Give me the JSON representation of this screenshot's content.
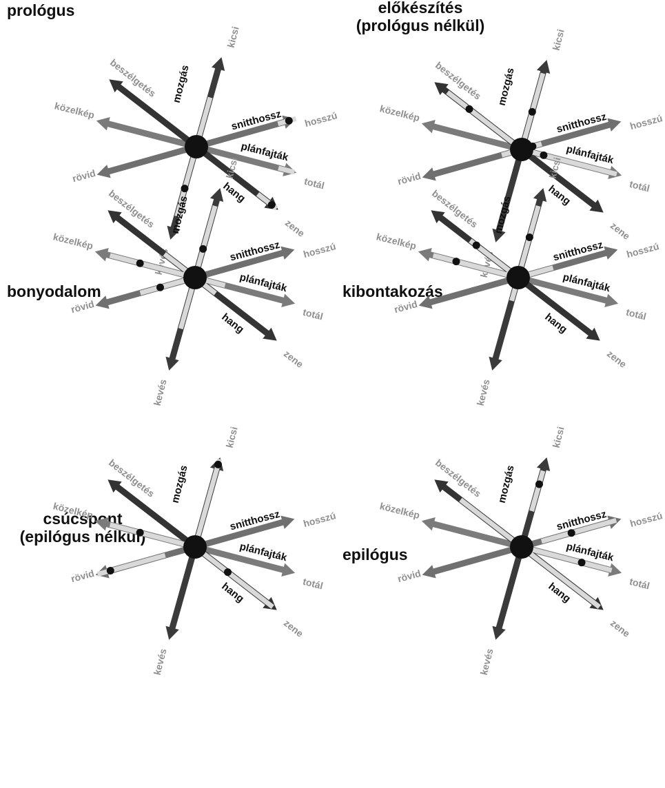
{
  "panels": [
    {
      "title_lines": [
        "prológus"
      ]
    },
    {
      "title_lines": [
        "előkészítés",
        "(prológus nélkül)"
      ]
    },
    {
      "title_lines": [
        "bonyodalom"
      ]
    },
    {
      "title_lines": [
        "kibontakozás"
      ]
    },
    {
      "title_lines": [
        "csúcspont",
        "(epilógus nélkül)"
      ]
    },
    {
      "title_lines": [
        "epilógus"
      ]
    }
  ],
  "axes": [
    {
      "key": "mozgas",
      "name": "mozgás",
      "pos_end": "kicsi",
      "neg_end": "kevés",
      "color": "#3a3a3a"
    },
    {
      "key": "snitt",
      "name": "snitthossz",
      "pos_end": "hosszú",
      "neg_end": "rövid",
      "color": "#707070"
    },
    {
      "key": "plan",
      "name": "plánfajták",
      "pos_end": "totál",
      "neg_end": "közelkép",
      "color": "#7b7b7b"
    },
    {
      "key": "hang",
      "name": "hang",
      "pos_end": "zene",
      "neg_end": "beszélgetés",
      "color": "#333333"
    }
  ],
  "colors": {
    "highlight": "#d9d9d9",
    "dot": "#111111",
    "end_label": "#8f8f8f"
  },
  "icon": "star-axis-diagram"
}
